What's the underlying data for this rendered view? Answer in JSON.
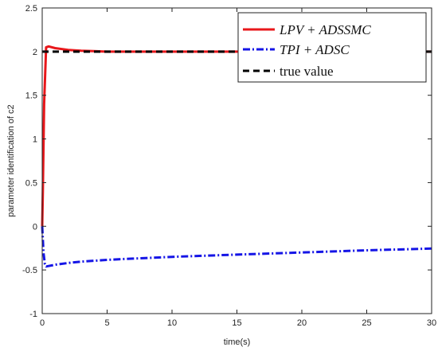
{
  "chart_data": {
    "type": "line",
    "xlabel": "time(s)",
    "ylabel": "parameter identification of c2",
    "xlim": [
      0,
      30
    ],
    "ylim": [
      -1,
      2.5
    ],
    "xticks": [
      "0",
      "5",
      "10",
      "15",
      "20",
      "25",
      "30"
    ],
    "yticks": [
      "-1",
      "-0.5",
      "0",
      "0.5",
      "1",
      "1.5",
      "2",
      "2.5"
    ],
    "grid": false,
    "legend_position": "top-right",
    "series": [
      {
        "name": "LPV + ADSSMC",
        "color": "#e8171b",
        "style": "solid",
        "x": [
          0,
          0.05,
          0.15,
          0.3,
          0.5,
          1,
          2,
          3,
          4,
          5,
          7,
          10,
          15,
          20,
          25,
          30
        ],
        "y": [
          0,
          0.4,
          1.4,
          2.05,
          2.06,
          2.04,
          2.02,
          2.01,
          2.005,
          2.0,
          2.0,
          2.0,
          2.0,
          2.0,
          2.0,
          2.0
        ]
      },
      {
        "name": "TPI + ADSC",
        "color": "#1515e6",
        "style": "dashdot",
        "x": [
          0,
          0.1,
          0.2,
          0.3,
          0.5,
          1,
          2,
          3,
          5,
          7,
          10,
          15,
          20,
          25,
          30
        ],
        "y": [
          0.0,
          -0.3,
          -0.43,
          -0.46,
          -0.455,
          -0.44,
          -0.42,
          -0.405,
          -0.385,
          -0.37,
          -0.35,
          -0.325,
          -0.3,
          -0.275,
          -0.255
        ]
      },
      {
        "name": "true value",
        "color": "#000000",
        "style": "dashed",
        "x": [
          0,
          30
        ],
        "y": [
          2,
          2
        ]
      }
    ]
  }
}
